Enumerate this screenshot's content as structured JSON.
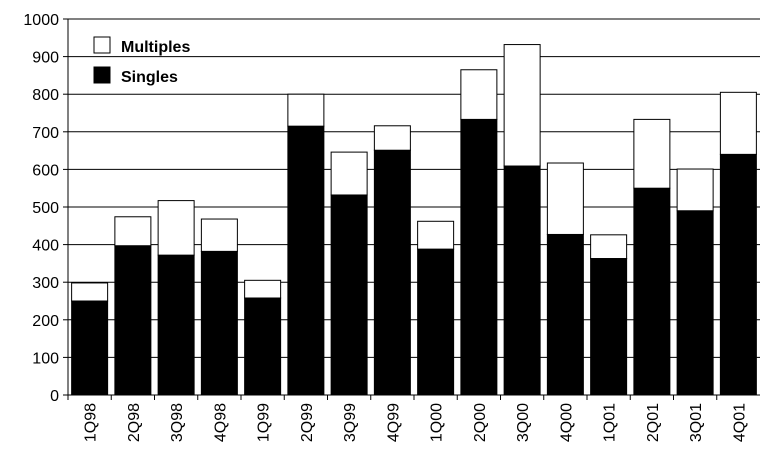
{
  "chart_data": {
    "type": "bar",
    "stacked": true,
    "title": "",
    "xlabel": "",
    "ylabel": "",
    "ylim": [
      0,
      1000
    ],
    "yticks": [
      "0",
      "100",
      "200",
      "300",
      "400",
      "500",
      "600",
      "700",
      "800",
      "900",
      "1000"
    ],
    "grid": true,
    "legend_position": "top-left",
    "categories": [
      "1Q98",
      "2Q98",
      "3Q98",
      "4Q98",
      "1Q99",
      "2Q99",
      "3Q99",
      "4Q99",
      "1Q00",
      "2Q00",
      "3Q00",
      "4Q00",
      "1Q01",
      "2Q01",
      "3Q01",
      "4Q01"
    ],
    "series": [
      {
        "name": "Singles",
        "color": "#000000",
        "values": [
          250,
          397,
          372,
          382,
          258,
          715,
          532,
          651,
          388,
          733,
          609,
          427,
          363,
          550,
          490,
          640
        ]
      },
      {
        "name": "Multiples",
        "color": "#ffffff",
        "values": [
          48,
          77,
          145,
          86,
          47,
          85,
          114,
          65,
          74,
          132,
          323,
          190,
          63,
          183,
          111,
          165
        ]
      }
    ]
  }
}
